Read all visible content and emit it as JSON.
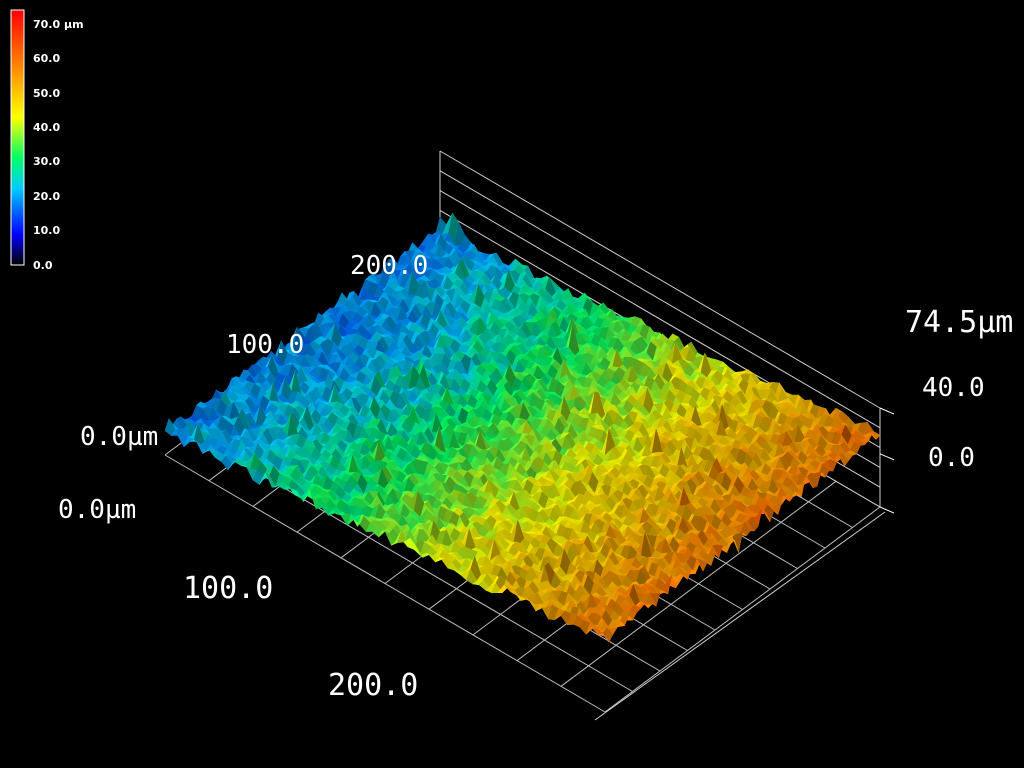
{
  "chart_data": {
    "type": "surface-3d",
    "title": "",
    "legend": {
      "placement": "top-left",
      "unit": "µm",
      "ticks": [
        "70.0 µm",
        "60.0",
        "50.0",
        "40.0",
        "30.0",
        "20.0",
        "10.0",
        "0.0"
      ],
      "min": 0,
      "max": 70,
      "colors": [
        "#000000",
        "#0000ff",
        "#00ccff",
        "#00ff66",
        "#ffff00",
        "#ff9900",
        "#ff0000"
      ]
    },
    "x_axis": {
      "range": [
        0,
        250
      ],
      "tick_labels": [
        "0.0µm",
        "100.0",
        "200.0"
      ]
    },
    "y_axis": {
      "range": [
        0,
        250
      ],
      "tick_labels": [
        "0.0µm",
        "100.0",
        "200.0"
      ]
    },
    "z_axis": {
      "range": [
        0,
        74.5
      ],
      "tick_labels": [
        "0.0",
        "40.0",
        "74.5µm"
      ]
    },
    "surface": {
      "description_values": "height in µm increases from ~17 at x=0 to ~55 at x=250",
      "height_at_x0": 17,
      "height_at_x250": 55
    },
    "grid": true
  }
}
